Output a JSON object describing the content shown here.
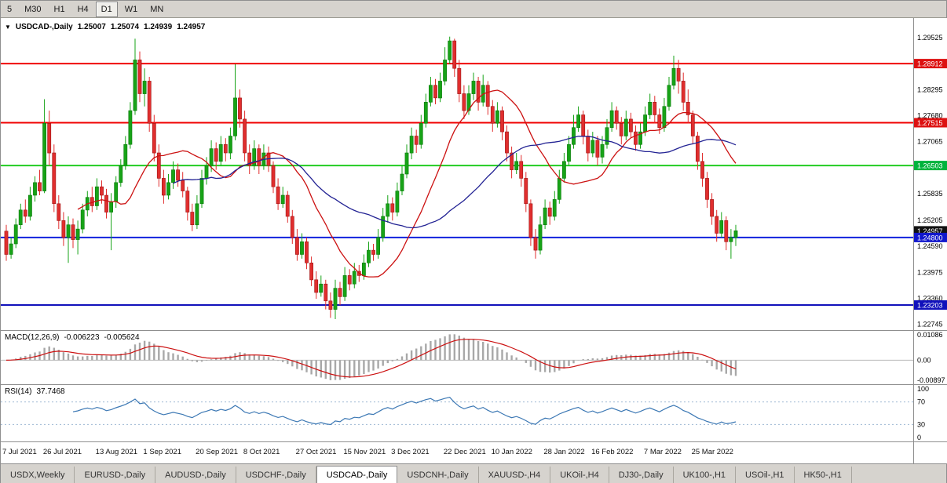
{
  "toolbar": {
    "timeframes": [
      {
        "label": "5",
        "active": false
      },
      {
        "label": "M30",
        "active": false
      },
      {
        "label": "H1",
        "active": false
      },
      {
        "label": "H4",
        "active": false
      },
      {
        "label": "D1",
        "active": true
      },
      {
        "label": "W1",
        "active": false
      },
      {
        "label": "MN",
        "active": false
      }
    ]
  },
  "icons": {
    "dropdown": "▼"
  },
  "tabs": {
    "items": [
      {
        "label": "USDX,Weekly",
        "selected": false
      },
      {
        "label": "EURUSD-,Daily",
        "selected": false
      },
      {
        "label": "AUDUSD-,Daily",
        "selected": false
      },
      {
        "label": "USDCHF-,Daily",
        "selected": false
      },
      {
        "label": "USDCAD-,Daily",
        "selected": true
      },
      {
        "label": "USDCNH-,Daily",
        "selected": false
      },
      {
        "label": "XAUUSD-,H4",
        "selected": false
      },
      {
        "label": "UKOil-,H4",
        "selected": false
      },
      {
        "label": "DJ30-,Daily",
        "selected": false
      },
      {
        "label": "UK100-,H1",
        "selected": false
      },
      {
        "label": "USOil-,H1",
        "selected": false
      },
      {
        "label": "HK50-,H1",
        "selected": false
      }
    ]
  },
  "chart_data": [
    {
      "type": "candlestick",
      "title": "USDCAD-,Daily",
      "header": {
        "symbol": "USDCAD-,Daily",
        "open": "1.25007",
        "high": "1.25074",
        "low": "1.24939",
        "close": "1.24957"
      },
      "up_color": "#17a317",
      "up_border": "#0b7a0b",
      "down_color": "#e02e2e",
      "down_border": "#9e1414",
      "y_range": [
        1.2261,
        1.2999
      ],
      "y_ticks": [
        "1.29525",
        "1.28295",
        "1.27680",
        "1.27065",
        "1.26450",
        "1.25835",
        "1.25205",
        "1.24590",
        "1.23975",
        "1.23360",
        "1.22745"
      ],
      "price_tags": [
        {
          "text": "1.28912",
          "color": "#dd1111"
        },
        {
          "text": "1.27515",
          "color": "#dd1111"
        },
        {
          "text": "1.26503",
          "color": "#00b33c"
        },
        {
          "text": "1.24957",
          "color": "#111111"
        },
        {
          "text": "1.24800",
          "color": "#1117cc"
        },
        {
          "text": "1.23203",
          "color": "#1111bb"
        }
      ],
      "hlines": [
        {
          "price": 1.28912,
          "color": "#f00000",
          "w": 2
        },
        {
          "price": 1.27515,
          "color": "#f00000",
          "w": 2
        },
        {
          "price": 1.26503,
          "color": "#22cc22",
          "w": 2
        },
        {
          "price": 1.248,
          "color": "#1122dd",
          "w": 2
        },
        {
          "price": 1.23203,
          "color": "#1111bb",
          "w": 2
        }
      ],
      "moving_averages": [
        {
          "name": "ma-fast",
          "period": 16,
          "color": "#cc1111"
        },
        {
          "name": "ma-slow",
          "period": 36,
          "color": "#232394"
        }
      ],
      "x_labels": [
        "7 Jul 2021",
        "26 Jul 2021",
        "13 Aug 2021",
        "1 Sep 2021",
        "20 Sep 2021",
        "8 Oct 2021",
        "27 Oct 2021",
        "15 Nov 2021",
        "3 Dec 2021",
        "22 Dec 2021",
        "10 Jan 2022",
        "28 Jan 2022",
        "16 Feb 2022",
        "7 Mar 2022",
        "25 Mar 2022"
      ],
      "candles": [
        [
          1.2495,
          1.251,
          1.2425,
          1.244
        ],
        [
          1.244,
          1.248,
          1.243,
          1.2465
        ],
        [
          1.2465,
          1.2525,
          1.2455,
          1.251
        ],
        [
          1.251,
          1.256,
          1.25,
          1.2545
        ],
        [
          1.2545,
          1.257,
          1.2515,
          1.253
        ],
        [
          1.253,
          1.26,
          1.252,
          1.258
        ],
        [
          1.258,
          1.2625,
          1.2565,
          1.261
        ],
        [
          1.261,
          1.264,
          1.258,
          1.259
        ],
        [
          1.259,
          1.2807,
          1.2585,
          1.275
        ],
        [
          1.275,
          1.278,
          1.265,
          1.268
        ],
        [
          1.268,
          1.27,
          1.254,
          1.256
        ],
        [
          1.256,
          1.258,
          1.25,
          1.252
        ],
        [
          1.252,
          1.254,
          1.246,
          1.248
        ],
        [
          1.248,
          1.253,
          1.242,
          1.251
        ],
        [
          1.251,
          1.2525,
          1.2455,
          1.2475
        ],
        [
          1.2475,
          1.252,
          1.244,
          1.25
        ],
        [
          1.25,
          1.256,
          1.249,
          1.2545
        ],
        [
          1.2545,
          1.259,
          1.253,
          1.2575
        ],
        [
          1.2575,
          1.26,
          1.254,
          1.2555
        ],
        [
          1.2555,
          1.262,
          1.2545,
          1.26
        ],
        [
          1.26,
          1.2615,
          1.256,
          1.258
        ],
        [
          1.258,
          1.2595,
          1.2525,
          1.254
        ],
        [
          1.254,
          1.2585,
          1.245,
          1.2565
        ],
        [
          1.2565,
          1.2625,
          1.255,
          1.261
        ],
        [
          1.261,
          1.2665,
          1.26,
          1.265
        ],
        [
          1.265,
          1.272,
          1.264,
          1.27
        ],
        [
          1.27,
          1.28,
          1.269,
          1.278
        ],
        [
          1.278,
          1.295,
          1.277,
          1.29
        ],
        [
          1.29,
          1.292,
          1.28,
          1.282
        ],
        [
          1.282,
          1.288,
          1.279,
          1.285
        ],
        [
          1.285,
          1.286,
          1.273,
          1.275
        ],
        [
          1.275,
          1.277,
          1.266,
          1.268
        ],
        [
          1.268,
          1.27,
          1.26,
          1.262
        ],
        [
          1.262,
          1.264,
          1.256,
          1.258
        ],
        [
          1.258,
          1.263,
          1.257,
          1.261
        ],
        [
          1.261,
          1.266,
          1.2595,
          1.264
        ],
        [
          1.264,
          1.2655,
          1.26,
          1.2615
        ],
        [
          1.2615,
          1.2635,
          1.2575,
          1.259
        ],
        [
          1.259,
          1.26,
          1.252,
          1.254
        ],
        [
          1.254,
          1.256,
          1.2495,
          1.251
        ],
        [
          1.251,
          1.258,
          1.25,
          1.256
        ],
        [
          1.256,
          1.264,
          1.255,
          1.262
        ],
        [
          1.262,
          1.267,
          1.2605,
          1.265
        ],
        [
          1.265,
          1.271,
          1.2635,
          1.269
        ],
        [
          1.269,
          1.2705,
          1.264,
          1.266
        ],
        [
          1.266,
          1.272,
          1.265,
          1.27
        ],
        [
          1.27,
          1.2715,
          1.266,
          1.268
        ],
        [
          1.268,
          1.274,
          1.2665,
          1.272
        ],
        [
          1.272,
          1.289,
          1.271,
          1.281
        ],
        [
          1.281,
          1.283,
          1.274,
          1.276
        ],
        [
          1.276,
          1.278,
          1.266,
          1.268
        ],
        [
          1.268,
          1.27,
          1.263,
          1.265
        ],
        [
          1.265,
          1.271,
          1.264,
          1.269
        ],
        [
          1.269,
          1.27,
          1.263,
          1.265
        ],
        [
          1.265,
          1.27,
          1.264,
          1.268
        ],
        [
          1.268,
          1.2695,
          1.2635,
          1.265
        ],
        [
          1.265,
          1.266,
          1.2585,
          1.26
        ],
        [
          1.26,
          1.262,
          1.2545,
          1.256
        ],
        [
          1.256,
          1.26,
          1.255,
          1.258
        ],
        [
          1.258,
          1.259,
          1.2515,
          1.253
        ],
        [
          1.253,
          1.2545,
          1.2465,
          1.248
        ],
        [
          1.248,
          1.25,
          1.2425,
          1.244
        ],
        [
          1.244,
          1.249,
          1.243,
          1.247
        ],
        [
          1.247,
          1.248,
          1.2405,
          1.242
        ],
        [
          1.242,
          1.2435,
          1.2365,
          1.238
        ],
        [
          1.238,
          1.24,
          1.2335,
          1.235
        ],
        [
          1.235,
          1.239,
          1.234,
          1.237
        ],
        [
          1.237,
          1.238,
          1.231,
          1.233
        ],
        [
          1.233,
          1.235,
          1.229,
          1.231
        ],
        [
          1.231,
          1.238,
          1.2287,
          1.236
        ],
        [
          1.236,
          1.2375,
          1.232,
          1.234
        ],
        [
          1.234,
          1.241,
          1.233,
          1.239
        ],
        [
          1.239,
          1.2405,
          1.2355,
          1.237
        ],
        [
          1.237,
          1.242,
          1.236,
          1.24
        ],
        [
          1.24,
          1.2415,
          1.2375,
          1.239
        ],
        [
          1.239,
          1.244,
          1.238,
          1.242
        ],
        [
          1.242,
          1.247,
          1.241,
          1.245
        ],
        [
          1.245,
          1.2465,
          1.2425,
          1.244
        ],
        [
          1.244,
          1.25,
          1.243,
          1.248
        ],
        [
          1.248,
          1.255,
          1.247,
          1.253
        ],
        [
          1.253,
          1.258,
          1.2515,
          1.256
        ],
        [
          1.256,
          1.2575,
          1.252,
          1.254
        ],
        [
          1.254,
          1.261,
          1.253,
          1.259
        ],
        [
          1.259,
          1.265,
          1.258,
          1.263
        ],
        [
          1.263,
          1.27,
          1.262,
          1.268
        ],
        [
          1.268,
          1.274,
          1.2665,
          1.272
        ],
        [
          1.272,
          1.2735,
          1.268,
          1.27
        ],
        [
          1.27,
          1.277,
          1.269,
          1.275
        ],
        [
          1.275,
          1.282,
          1.274,
          1.28
        ],
        [
          1.28,
          1.286,
          1.279,
          1.284
        ],
        [
          1.284,
          1.2855,
          1.2795,
          1.281
        ],
        [
          1.281,
          1.287,
          1.28,
          1.285
        ],
        [
          1.285,
          1.293,
          1.284,
          1.29
        ],
        [
          1.29,
          1.2955,
          1.289,
          1.2945
        ],
        [
          1.2945,
          1.295,
          1.286,
          1.288
        ],
        [
          1.288,
          1.29,
          1.28,
          1.282
        ],
        [
          1.282,
          1.284,
          1.276,
          1.278
        ],
        [
          1.278,
          1.284,
          1.277,
          1.282
        ],
        [
          1.282,
          1.287,
          1.2805,
          1.285
        ],
        [
          1.285,
          1.286,
          1.278,
          1.28
        ],
        [
          1.28,
          1.2865,
          1.279,
          1.284
        ],
        [
          1.284,
          1.285,
          1.277,
          1.279
        ],
        [
          1.279,
          1.2805,
          1.273,
          1.275
        ],
        [
          1.275,
          1.28,
          1.274,
          1.278
        ],
        [
          1.278,
          1.279,
          1.271,
          1.273
        ],
        [
          1.273,
          1.2745,
          1.266,
          1.268
        ],
        [
          1.268,
          1.2695,
          1.262,
          1.264
        ],
        [
          1.264,
          1.268,
          1.263,
          1.266
        ],
        [
          1.266,
          1.2675,
          1.26,
          1.262
        ],
        [
          1.262,
          1.2635,
          1.254,
          1.256
        ],
        [
          1.256,
          1.257,
          1.246,
          1.248
        ],
        [
          1.248,
          1.25,
          1.243,
          1.245
        ],
        [
          1.245,
          1.253,
          1.244,
          1.251
        ],
        [
          1.251,
          1.257,
          1.25,
          1.255
        ],
        [
          1.255,
          1.2565,
          1.251,
          1.253
        ],
        [
          1.253,
          1.259,
          1.252,
          1.257
        ],
        [
          1.257,
          1.264,
          1.256,
          1.262
        ],
        [
          1.262,
          1.268,
          1.261,
          1.266
        ],
        [
          1.266,
          1.272,
          1.265,
          1.27
        ],
        [
          1.27,
          1.277,
          1.269,
          1.274
        ],
        [
          1.274,
          1.279,
          1.273,
          1.277
        ],
        [
          1.277,
          1.278,
          1.27,
          1.272
        ],
        [
          1.272,
          1.2735,
          1.266,
          1.268
        ],
        [
          1.268,
          1.273,
          1.267,
          1.271
        ],
        [
          1.271,
          1.272,
          1.265,
          1.267
        ],
        [
          1.267,
          1.272,
          1.2655,
          1.27
        ],
        [
          1.27,
          1.276,
          1.269,
          1.274
        ],
        [
          1.274,
          1.28,
          1.273,
          1.278
        ],
        [
          1.278,
          1.279,
          1.2735,
          1.275
        ],
        [
          1.275,
          1.2765,
          1.27,
          1.272
        ],
        [
          1.272,
          1.278,
          1.271,
          1.276
        ],
        [
          1.276,
          1.2775,
          1.2715,
          1.273
        ],
        [
          1.273,
          1.2745,
          1.2685,
          1.27
        ],
        [
          1.27,
          1.275,
          1.269,
          1.273
        ],
        [
          1.273,
          1.279,
          1.272,
          1.277
        ],
        [
          1.277,
          1.282,
          1.276,
          1.28
        ],
        [
          1.28,
          1.2815,
          1.275,
          1.277
        ],
        [
          1.277,
          1.2785,
          1.2725,
          1.274
        ],
        [
          1.274,
          1.281,
          1.273,
          1.279
        ],
        [
          1.279,
          1.286,
          1.278,
          1.284
        ],
        [
          1.284,
          1.291,
          1.283,
          1.288
        ],
        [
          1.288,
          1.29,
          1.282,
          1.285
        ],
        [
          1.285,
          1.287,
          1.278,
          1.28
        ],
        [
          1.28,
          1.283,
          1.275,
          1.277
        ],
        [
          1.277,
          1.278,
          1.27,
          1.272
        ],
        [
          1.272,
          1.273,
          1.264,
          1.266
        ],
        [
          1.266,
          1.268,
          1.26,
          1.262
        ],
        [
          1.262,
          1.2635,
          1.255,
          1.257
        ],
        [
          1.257,
          1.2585,
          1.251,
          1.253
        ],
        [
          1.253,
          1.2545,
          1.247,
          1.249
        ],
        [
          1.249,
          1.254,
          1.248,
          1.252
        ],
        [
          1.252,
          1.253,
          1.245,
          1.247
        ],
        [
          1.247,
          1.25,
          1.243,
          1.248
        ],
        [
          1.248,
          1.251,
          1.246,
          1.2496
        ]
      ]
    },
    {
      "type": "macd",
      "label": "MACD(12,26,9)",
      "macd_value": "-0.006223",
      "signal_value": "-0.005624",
      "params": [
        12,
        26,
        9
      ],
      "y_range": [
        -0.01,
        0.0122
      ],
      "y_ticks": [
        "0.01086",
        "0.00",
        "-0.00897"
      ],
      "histogram_color": "#a8a8a8",
      "signal_color": "#cc1111"
    },
    {
      "type": "rsi",
      "label": "RSI(14)",
      "value": "37.7468",
      "period": 14,
      "levels": [
        70,
        30
      ],
      "level_color": "#9db8d2",
      "y_range": [
        0,
        100
      ],
      "y_ticks": [
        "100",
        "70",
        "30",
        "0"
      ],
      "line_color": "#3c78b4"
    }
  ]
}
